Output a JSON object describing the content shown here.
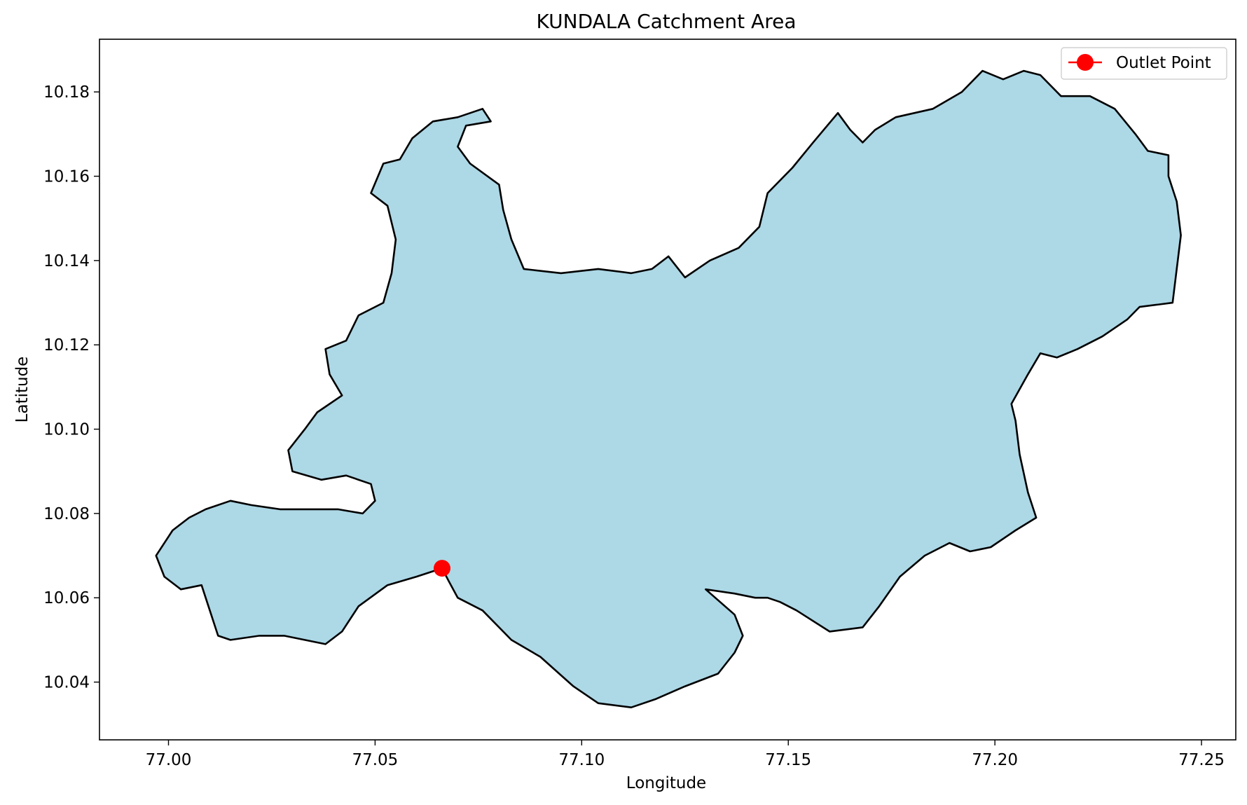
{
  "chart_data": {
    "type": "map",
    "title": "KUNDALA Catchment Area",
    "xlabel": "Longitude",
    "ylabel": "Latitude",
    "xlim": [
      76.9833,
      77.2583
    ],
    "ylim": [
      10.0263,
      10.1925
    ],
    "xticks": [
      {
        "value": 77.0,
        "label": "77.00"
      },
      {
        "value": 77.05,
        "label": "77.05"
      },
      {
        "value": 77.1,
        "label": "77.10"
      },
      {
        "value": 77.15,
        "label": "77.15"
      },
      {
        "value": 77.2,
        "label": "77.20"
      },
      {
        "value": 77.25,
        "label": "77.25"
      }
    ],
    "yticks": [
      {
        "value": 10.04,
        "label": "10.04"
      },
      {
        "value": 10.06,
        "label": "10.06"
      },
      {
        "value": 10.08,
        "label": "10.08"
      },
      {
        "value": 10.1,
        "label": "10.10"
      },
      {
        "value": 10.12,
        "label": "10.12"
      },
      {
        "value": 10.14,
        "label": "10.14"
      },
      {
        "value": 10.16,
        "label": "10.16"
      },
      {
        "value": 10.18,
        "label": "10.18"
      }
    ],
    "grid": false,
    "legend_position": "upper-right",
    "legend": [
      {
        "label": "Outlet Point",
        "marker": "circle",
        "color": "#ff0000"
      }
    ],
    "catchment": {
      "fill_color": "#add8e6",
      "edge_color": "#000000",
      "boundary": [
        [
          77.0662,
          10.067
        ],
        [
          77.0678,
          10.064
        ],
        [
          77.07,
          10.06
        ],
        [
          77.076,
          10.057
        ],
        [
          77.083,
          10.05
        ],
        [
          77.09,
          10.046
        ],
        [
          77.098,
          10.039
        ],
        [
          77.104,
          10.035
        ],
        [
          77.112,
          10.034
        ],
        [
          77.118,
          10.036
        ],
        [
          77.125,
          10.039
        ],
        [
          77.133,
          10.042
        ],
        [
          77.137,
          10.047
        ],
        [
          77.139,
          10.051
        ],
        [
          77.137,
          10.056
        ],
        [
          77.13,
          10.062
        ],
        [
          77.137,
          10.061
        ],
        [
          77.142,
          10.06
        ],
        [
          77.145,
          10.06
        ],
        [
          77.148,
          10.059
        ],
        [
          77.152,
          10.057
        ],
        [
          77.16,
          10.052
        ],
        [
          77.168,
          10.053
        ],
        [
          77.172,
          10.058
        ],
        [
          77.177,
          10.065
        ],
        [
          77.183,
          10.07
        ],
        [
          77.189,
          10.073
        ],
        [
          77.194,
          10.071
        ],
        [
          77.199,
          10.072
        ],
        [
          77.205,
          10.076
        ],
        [
          77.21,
          10.079
        ],
        [
          77.208,
          10.085
        ],
        [
          77.206,
          10.094
        ],
        [
          77.205,
          10.102
        ],
        [
          77.204,
          10.106
        ],
        [
          77.208,
          10.113
        ],
        [
          77.211,
          10.118
        ],
        [
          77.215,
          10.117
        ],
        [
          77.22,
          10.119
        ],
        [
          77.226,
          10.122
        ],
        [
          77.232,
          10.126
        ],
        [
          77.235,
          10.129
        ],
        [
          77.243,
          10.13
        ],
        [
          77.244,
          10.138
        ],
        [
          77.245,
          10.146
        ],
        [
          77.244,
          10.154
        ],
        [
          77.242,
          10.16
        ],
        [
          77.242,
          10.165
        ],
        [
          77.237,
          10.166
        ],
        [
          77.234,
          10.17
        ],
        [
          77.229,
          10.176
        ],
        [
          77.223,
          10.179
        ],
        [
          77.216,
          10.179
        ],
        [
          77.211,
          10.184
        ],
        [
          77.207,
          10.185
        ],
        [
          77.202,
          10.183
        ],
        [
          77.197,
          10.185
        ],
        [
          77.192,
          10.18
        ],
        [
          77.185,
          10.176
        ],
        [
          77.176,
          10.174
        ],
        [
          77.171,
          10.171
        ],
        [
          77.168,
          10.168
        ],
        [
          77.165,
          10.171
        ],
        [
          77.162,
          10.175
        ],
        [
          77.156,
          10.168
        ],
        [
          77.151,
          10.162
        ],
        [
          77.145,
          10.156
        ],
        [
          77.143,
          10.148
        ],
        [
          77.138,
          10.143
        ],
        [
          77.131,
          10.14
        ],
        [
          77.125,
          10.136
        ],
        [
          77.121,
          10.141
        ],
        [
          77.117,
          10.138
        ],
        [
          77.112,
          10.137
        ],
        [
          77.104,
          10.138
        ],
        [
          77.095,
          10.137
        ],
        [
          77.086,
          10.138
        ],
        [
          77.083,
          10.145
        ],
        [
          77.081,
          10.152
        ],
        [
          77.08,
          10.158
        ],
        [
          77.073,
          10.163
        ],
        [
          77.07,
          10.167
        ],
        [
          77.072,
          10.172
        ],
        [
          77.078,
          10.173
        ],
        [
          77.076,
          10.176
        ],
        [
          77.07,
          10.174
        ],
        [
          77.064,
          10.173
        ],
        [
          77.059,
          10.169
        ],
        [
          77.056,
          10.164
        ],
        [
          77.052,
          10.163
        ],
        [
          77.049,
          10.156
        ],
        [
          77.053,
          10.153
        ],
        [
          77.055,
          10.145
        ],
        [
          77.054,
          10.137
        ],
        [
          77.052,
          10.13
        ],
        [
          77.046,
          10.127
        ],
        [
          77.043,
          10.121
        ],
        [
          77.038,
          10.119
        ],
        [
          77.039,
          10.113
        ],
        [
          77.042,
          10.108
        ],
        [
          77.036,
          10.104
        ],
        [
          77.033,
          10.1
        ],
        [
          77.029,
          10.095
        ],
        [
          77.03,
          10.09
        ],
        [
          77.037,
          10.088
        ],
        [
          77.043,
          10.089
        ],
        [
          77.049,
          10.087
        ],
        [
          77.05,
          10.083
        ],
        [
          77.047,
          10.08
        ],
        [
          77.041,
          10.081
        ],
        [
          77.034,
          10.081
        ],
        [
          77.027,
          10.081
        ],
        [
          77.02,
          10.082
        ],
        [
          77.015,
          10.083
        ],
        [
          77.009,
          10.081
        ],
        [
          77.005,
          10.079
        ],
        [
          77.001,
          10.076
        ],
        [
          76.997,
          10.07
        ],
        [
          76.999,
          10.065
        ],
        [
          77.003,
          10.062
        ],
        [
          77.008,
          10.063
        ],
        [
          77.01,
          10.057
        ],
        [
          77.012,
          10.051
        ],
        [
          77.015,
          10.05
        ],
        [
          77.022,
          10.051
        ],
        [
          77.028,
          10.051
        ],
        [
          77.033,
          10.05
        ],
        [
          77.038,
          10.049
        ],
        [
          77.042,
          10.052
        ],
        [
          77.046,
          10.058
        ],
        [
          77.053,
          10.063
        ],
        [
          77.06,
          10.065
        ],
        [
          77.0662,
          10.067
        ]
      ]
    },
    "outlet_point": {
      "label": "Outlet Point",
      "lon": 77.0662,
      "lat": 10.067,
      "color": "#ff0000"
    }
  }
}
